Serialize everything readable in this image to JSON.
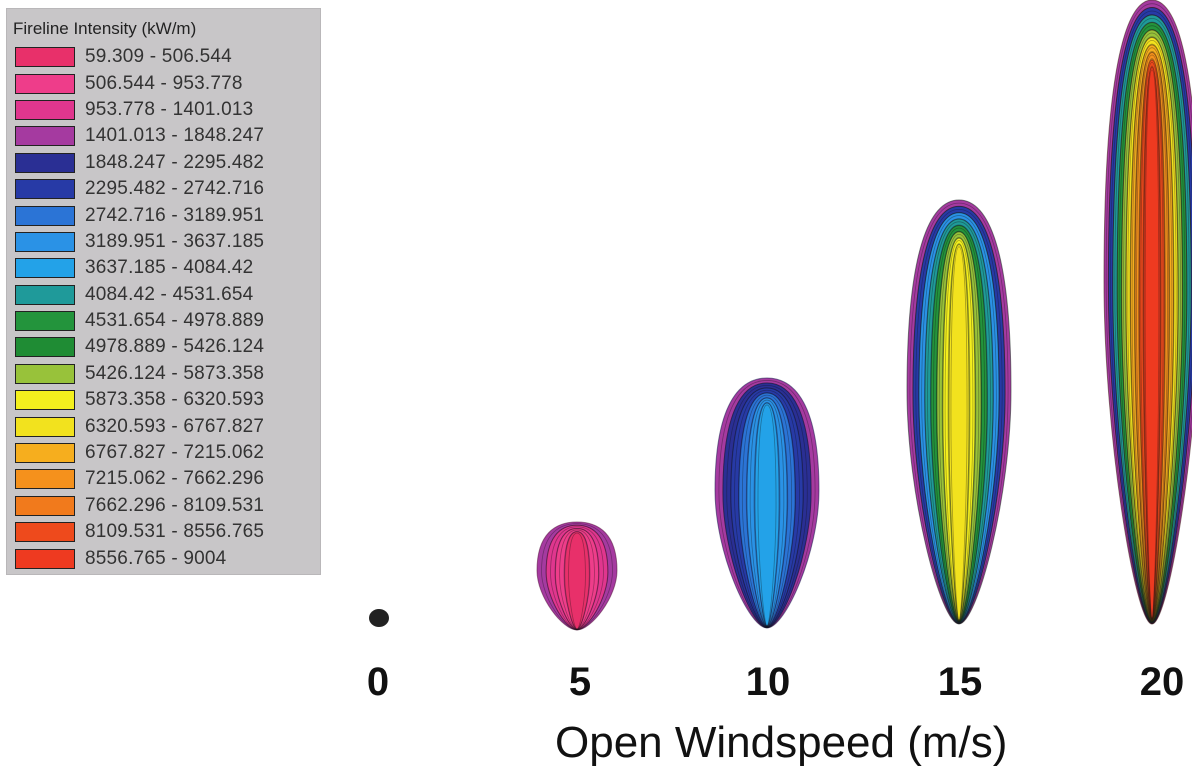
{
  "legend": {
    "title": "Fireline Intensity (kW/m)",
    "classes": [
      {
        "label": "59.309 - 506.544",
        "color": "#e8306a"
      },
      {
        "label": "506.544 - 953.778",
        "color": "#ee3d8a"
      },
      {
        "label": "953.778 - 1401.013",
        "color": "#e0368e"
      },
      {
        "label": "1401.013 - 1848.247",
        "color": "#a53aa0"
      },
      {
        "label": "1848.247 - 2295.482",
        "color": "#2a2f94"
      },
      {
        "label": "2295.482 - 2742.716",
        "color": "#273aa6"
      },
      {
        "label": "2742.716 - 3189.951",
        "color": "#2b74d6"
      },
      {
        "label": "3189.951 - 3637.185",
        "color": "#2a92e6"
      },
      {
        "label": "3637.185 - 4084.42",
        "color": "#23a2e8"
      },
      {
        "label": "4084.42 - 4531.654",
        "color": "#1f9a9a"
      },
      {
        "label": "4531.654 - 4978.889",
        "color": "#23943c"
      },
      {
        "label": "4978.889 - 5426.124",
        "color": "#1f8c34"
      },
      {
        "label": "5426.124 - 5873.358",
        "color": "#98c23a"
      },
      {
        "label": "5873.358 - 6320.593",
        "color": "#f4f01e"
      },
      {
        "label": "6320.593 - 6767.827",
        "color": "#f2e21e"
      },
      {
        "label": "6767.827 - 7215.062",
        "color": "#f6ae1e"
      },
      {
        "label": "7215.062 - 7662.296",
        "color": "#f5911c"
      },
      {
        "label": "7662.296 - 8109.531",
        "color": "#f17a1c"
      },
      {
        "label": "8109.531 - 8556.765",
        "color": "#ee4a1c"
      },
      {
        "label": "8556.765 - 9004",
        "color": "#ee3a20"
      }
    ]
  },
  "x_axis": {
    "title": "Open Windspeed (m/s)",
    "ticks": [
      "0",
      "5",
      "10",
      "15",
      "20"
    ]
  },
  "fire_shapes": [
    {
      "windspeed": 0,
      "band_colors": [
        "#222222"
      ],
      "outline_color": "#222222"
    },
    {
      "windspeed": 5,
      "band_colors": [
        "#a53aa0",
        "#e0368e",
        "#ee3d8a",
        "#e8306a"
      ],
      "outline_color": "#5a1a40"
    },
    {
      "windspeed": 10,
      "band_colors": [
        "#a53aa0",
        "#2a2f94",
        "#273aa6",
        "#2b74d6",
        "#2a92e6",
        "#23a2e8"
      ],
      "outline_color": "#1a2050"
    },
    {
      "windspeed": 15,
      "band_colors": [
        "#a53aa0",
        "#273aa6",
        "#2a92e6",
        "#1f9a9a",
        "#23943c",
        "#98c23a",
        "#f4f01e",
        "#f2e21e"
      ],
      "outline_color": "#1a2a20"
    },
    {
      "windspeed": 20,
      "band_colors": [
        "#a53aa0",
        "#273aa6",
        "#1f9a9a",
        "#23943c",
        "#98c23a",
        "#f2e21e",
        "#f6ae1e",
        "#f5911c",
        "#ee4a1c",
        "#ee3a20"
      ],
      "outline_color": "#3a1a10"
    }
  ]
}
